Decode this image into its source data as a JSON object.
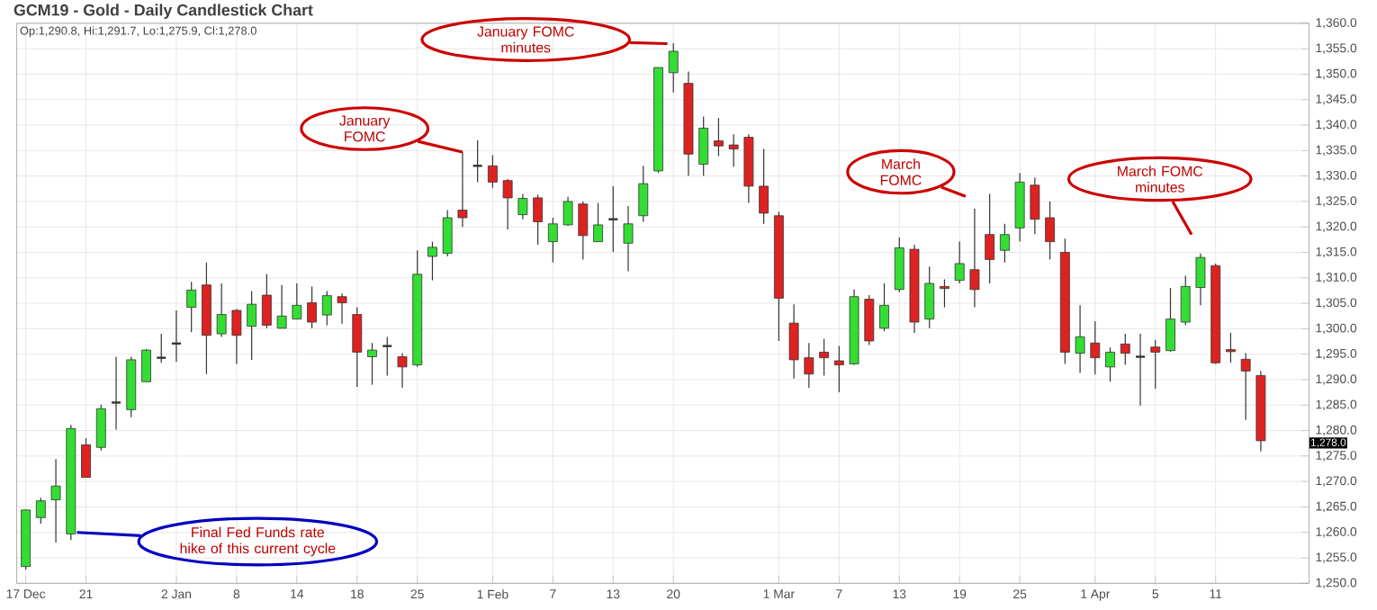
{
  "chart_data": {
    "type": "candlestick",
    "title": "GCM19 - Gold - Daily Candlestick Chart",
    "categories": [
      "17 Dec",
      null,
      null,
      null,
      "21",
      null,
      null,
      null,
      null,
      null,
      "2 Jan",
      null,
      null,
      null,
      "8",
      null,
      null,
      null,
      "14",
      null,
      null,
      null,
      "18",
      null,
      null,
      null,
      "25",
      null,
      null,
      null,
      null,
      "1 Feb",
      null,
      null,
      null,
      "7",
      null,
      null,
      null,
      "13",
      null,
      null,
      null,
      "20",
      null,
      null,
      null,
      null,
      null,
      null,
      "1 Mar",
      null,
      null,
      null,
      "7",
      null,
      null,
      null,
      "13",
      null,
      null,
      null,
      "19",
      null,
      null,
      null,
      "25",
      null,
      null,
      null,
      null,
      "1 Apr",
      null,
      null,
      null,
      "5",
      null,
      null,
      null,
      "11",
      null,
      null,
      null
    ],
    "ohlc": [
      [
        1253.3,
        1264.5,
        1252.7,
        1264.4
      ],
      [
        1262.9,
        1266.8,
        1261.7,
        1266.2
      ],
      [
        1266.4,
        1274.4,
        1258.0,
        1269.1
      ],
      [
        1259.7,
        1281.1,
        1258.5,
        1280.4
      ],
      [
        1277.2,
        1278.5,
        1270.8,
        1270.8
      ],
      [
        1276.7,
        1285.1,
        1276.1,
        1284.3
      ],
      [
        1285.5,
        1294.5,
        1280.2,
        1285.5
      ],
      [
        1284.1,
        1294.5,
        1282.6,
        1293.9
      ],
      [
        1289.6,
        1296.0,
        1289.6,
        1295.8
      ],
      [
        1294.3,
        1299.0,
        1293.3,
        1294.3
      ],
      [
        1297.1,
        1303.6,
        1293.5,
        1297.1
      ],
      [
        1304.2,
        1309.2,
        1299.3,
        1307.6
      ],
      [
        1308.6,
        1313.0,
        1291.1,
        1298.7
      ],
      [
        1299.0,
        1308.9,
        1298.4,
        1302.8
      ],
      [
        1303.6,
        1303.9,
        1293.1,
        1298.7
      ],
      [
        1300.5,
        1307.4,
        1293.9,
        1304.8
      ],
      [
        1306.6,
        1310.7,
        1300.1,
        1300.7
      ],
      [
        1300.1,
        1308.6,
        1300.1,
        1302.5
      ],
      [
        1301.9,
        1308.9,
        1301.9,
        1304.6
      ],
      [
        1305.1,
        1308.3,
        1300.1,
        1301.3
      ],
      [
        1302.7,
        1307.4,
        1300.7,
        1306.5
      ],
      [
        1306.3,
        1306.9,
        1301.0,
        1305.1
      ],
      [
        1302.8,
        1304.2,
        1288.6,
        1295.4
      ],
      [
        1294.5,
        1297.2,
        1289.0,
        1295.8
      ],
      [
        1296.6,
        1298.4,
        1290.8,
        1296.6
      ],
      [
        1294.5,
        1295.2,
        1288.4,
        1292.5
      ],
      [
        1292.9,
        1315.4,
        1292.5,
        1310.7
      ],
      [
        1314.2,
        1317.1,
        1309.5,
        1316.0
      ],
      [
        1314.8,
        1323.3,
        1314.2,
        1321.8
      ],
      [
        1323.3,
        1334.7,
        1320.0,
        1321.8
      ],
      [
        1332.0,
        1337.0,
        1328.8,
        1332.0
      ],
      [
        1332.0,
        1334.1,
        1327.7,
        1328.8
      ],
      [
        1329.1,
        1329.4,
        1319.5,
        1325.7
      ],
      [
        1322.4,
        1326.5,
        1321.5,
        1325.6
      ],
      [
        1325.7,
        1326.3,
        1316.5,
        1321.0
      ],
      [
        1317.1,
        1321.8,
        1313.0,
        1320.6
      ],
      [
        1320.4,
        1325.9,
        1320.2,
        1325.0
      ],
      [
        1324.5,
        1325.0,
        1313.6,
        1318.3
      ],
      [
        1317.1,
        1324.7,
        1317.1,
        1320.4
      ],
      [
        1321.5,
        1328.0,
        1315.1,
        1321.5
      ],
      [
        1316.8,
        1324.1,
        1311.3,
        1320.6
      ],
      [
        1322.2,
        1332.0,
        1321.0,
        1328.5
      ],
      [
        1331.0,
        1351.3,
        1330.6,
        1351.3
      ],
      [
        1350.3,
        1356.1,
        1346.4,
        1354.5
      ],
      [
        1348.2,
        1350.5,
        1330.0,
        1334.3
      ],
      [
        1332.3,
        1341.7,
        1330.0,
        1339.4
      ],
      [
        1336.9,
        1341.4,
        1333.9,
        1335.9
      ],
      [
        1336.1,
        1338.2,
        1331.8,
        1335.3
      ],
      [
        1337.6,
        1338.2,
        1324.7,
        1328.0
      ],
      [
        1328.0,
        1335.3,
        1320.6,
        1322.7
      ],
      [
        1322.2,
        1323.0,
        1297.6,
        1306.0
      ],
      [
        1301.1,
        1304.8,
        1290.2,
        1293.9
      ],
      [
        1294.3,
        1297.2,
        1288.4,
        1291.1
      ],
      [
        1295.4,
        1298.0,
        1290.8,
        1294.3
      ],
      [
        1293.7,
        1296.6,
        1287.5,
        1292.9
      ],
      [
        1293.1,
        1307.7,
        1292.9,
        1306.3
      ],
      [
        1305.8,
        1306.6,
        1296.8,
        1297.6
      ],
      [
        1300.1,
        1308.9,
        1299.5,
        1304.6
      ],
      [
        1307.7,
        1317.9,
        1307.2,
        1315.9
      ],
      [
        1315.6,
        1316.5,
        1299.2,
        1301.3
      ],
      [
        1301.9,
        1312.2,
        1300.1,
        1308.9
      ],
      [
        1308.3,
        1309.7,
        1304.2,
        1307.9
      ],
      [
        1309.5,
        1317.1,
        1308.9,
        1312.8
      ],
      [
        1311.6,
        1323.6,
        1304.2,
        1307.7
      ],
      [
        1318.5,
        1326.5,
        1308.9,
        1313.6
      ],
      [
        1315.4,
        1320.6,
        1313.0,
        1318.5
      ],
      [
        1319.8,
        1330.6,
        1317.1,
        1328.8
      ],
      [
        1328.2,
        1329.7,
        1318.6,
        1321.5
      ],
      [
        1321.8,
        1325.0,
        1313.6,
        1317.1
      ],
      [
        1315.0,
        1317.7,
        1293.1,
        1295.4
      ],
      [
        1295.2,
        1304.6,
        1291.3,
        1298.4
      ],
      [
        1297.2,
        1301.5,
        1291.0,
        1294.3
      ],
      [
        1292.5,
        1296.3,
        1289.6,
        1295.4
      ],
      [
        1297.0,
        1299.0,
        1292.9,
        1295.2
      ],
      [
        1294.5,
        1299.0,
        1284.9,
        1294.5
      ],
      [
        1296.4,
        1297.8,
        1288.2,
        1295.4
      ],
      [
        1295.7,
        1308.0,
        1295.5,
        1301.9
      ],
      [
        1301.3,
        1310.4,
        1300.7,
        1308.3
      ],
      [
        1308.1,
        1314.8,
        1304.6,
        1314.0
      ],
      [
        1312.4,
        1312.8,
        1293.1,
        1293.3
      ],
      [
        1295.9,
        1299.2,
        1293.3,
        1295.5
      ],
      [
        1294.0,
        1295.2,
        1282.1,
        1291.7
      ],
      [
        1290.8,
        1291.7,
        1275.9,
        1278.0
      ]
    ],
    "colors": [
      "#33dd33",
      "#33dd33",
      "#33dd33",
      "#33dd33",
      "#dd2222",
      "#33dd33",
      "#333333",
      "#33dd33",
      "#33dd33",
      "#333333",
      "#333333",
      "#33dd33",
      "#dd2222",
      "#33dd33",
      "#dd2222",
      "#33dd33",
      "#dd2222",
      "#33dd33",
      "#33dd33",
      "#dd2222",
      "#33dd33",
      "#dd2222",
      "#dd2222",
      "#33dd33",
      "#333333",
      "#dd2222",
      "#33dd33",
      "#33dd33",
      "#33dd33",
      "#dd2222",
      "#333333",
      "#dd2222",
      "#dd2222",
      "#33dd33",
      "#dd2222",
      "#33dd33",
      "#33dd33",
      "#dd2222",
      "#33dd33",
      "#333333",
      "#33dd33",
      "#33dd33",
      "#33dd33",
      "#33dd33",
      "#dd2222",
      "#33dd33",
      "#dd2222",
      "#dd2222",
      "#dd2222",
      "#dd2222",
      "#dd2222",
      "#dd2222",
      "#dd2222",
      "#dd2222",
      "#dd2222",
      "#33dd33",
      "#dd2222",
      "#33dd33",
      "#33dd33",
      "#dd2222",
      "#33dd33",
      "#dd2222",
      "#33dd33",
      "#dd2222",
      "#dd2222",
      "#33dd33",
      "#33dd33",
      "#dd2222",
      "#dd2222",
      "#dd2222",
      "#33dd33",
      "#dd2222",
      "#33dd33",
      "#dd2222",
      "#333333",
      "#dd2222",
      "#33dd33",
      "#33dd33",
      "#33dd33",
      "#dd2222",
      "#dd2222",
      "#dd2222",
      "#dd2222"
    ],
    "ylim": [
      1250,
      1360
    ],
    "yticks": [
      {
        "value": 1250,
        "label": "1,250.0"
      },
      {
        "value": 1255,
        "label": "1,255.0"
      },
      {
        "value": 1260,
        "label": "1,260.0"
      },
      {
        "value": 1265,
        "label": "1,265.0"
      },
      {
        "value": 1270,
        "label": "1,270.0"
      },
      {
        "value": 1275,
        "label": "1,275.0"
      },
      {
        "value": 1280,
        "label": "1,280.0"
      },
      {
        "value": 1285,
        "label": "1,285.0"
      },
      {
        "value": 1290,
        "label": "1,290.0"
      },
      {
        "value": 1295,
        "label": "1,295.0"
      },
      {
        "value": 1300,
        "label": "1,300.0"
      },
      {
        "value": 1305,
        "label": "1,305.0"
      },
      {
        "value": 1310,
        "label": "1,310.0"
      },
      {
        "value": 1315,
        "label": "1,315.0"
      },
      {
        "value": 1320,
        "label": "1,320.0"
      },
      {
        "value": 1325,
        "label": "1,325.0"
      },
      {
        "value": 1330,
        "label": "1,330.0"
      },
      {
        "value": 1335,
        "label": "1,335.0"
      },
      {
        "value": 1340,
        "label": "1,340.0"
      },
      {
        "value": 1345,
        "label": "1,345.0"
      },
      {
        "value": 1350,
        "label": "1,350.0"
      },
      {
        "value": 1355,
        "label": "1,355.0"
      },
      {
        "value": 1360,
        "label": "1,360.0"
      }
    ],
    "grid": true,
    "annotations": [
      "Op:1,290.8, Hi:1,291.7, Lo:1,275.9, Cl:1,278.0",
      "January FOMC",
      "January FOMC minutes",
      "March FOMC",
      "March FOMC minutes",
      "Final Fed Funds rate hike of this current cycle",
      "1,278.0"
    ]
  }
}
